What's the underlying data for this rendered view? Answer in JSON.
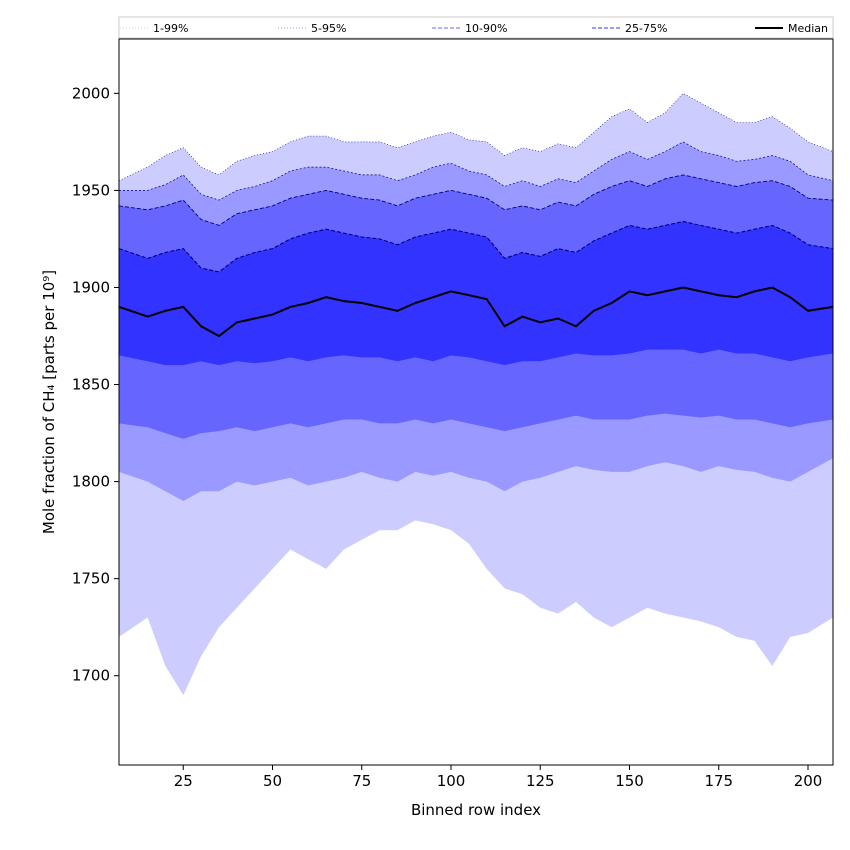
{
  "chart_data": {
    "type": "area",
    "xlabel": "Binned row index",
    "ylabel": "Mole fraction of CH₄ [parts per 10⁹]",
    "xlim": [
      7,
      207
    ],
    "ylim": [
      1654,
      2028
    ],
    "xticks": [
      25,
      50,
      75,
      100,
      125,
      150,
      175,
      200
    ],
    "yticks": [
      1700,
      1750,
      1800,
      1850,
      1900,
      1950,
      2000
    ],
    "grid": false,
    "legend_placement": "top",
    "legend": [
      {
        "label": "1-99%",
        "color": "#ccccff",
        "line": "dotted"
      },
      {
        "label": "5-95%",
        "color": "#9999ff",
        "line": "dotted"
      },
      {
        "label": "10-90%",
        "color": "#6666ff",
        "line": "dashed"
      },
      {
        "label": "25-75%",
        "color": "#3333ff",
        "line": "dashed"
      },
      {
        "label": "Median",
        "color": "#000000",
        "line": "solid"
      }
    ],
    "x": [
      7,
      15,
      20,
      25,
      30,
      35,
      40,
      45,
      50,
      55,
      60,
      65,
      70,
      75,
      80,
      85,
      90,
      95,
      100,
      105,
      110,
      115,
      120,
      125,
      130,
      135,
      140,
      145,
      150,
      155,
      160,
      165,
      170,
      175,
      180,
      185,
      190,
      195,
      200,
      207
    ],
    "series": [
      {
        "name": "1%",
        "values": [
          1720,
          1730,
          1705,
          1690,
          1710,
          1725,
          1735,
          1745,
          1755,
          1765,
          1760,
          1755,
          1765,
          1770,
          1775,
          1775,
          1780,
          1778,
          1775,
          1768,
          1755,
          1745,
          1742,
          1735,
          1732,
          1738,
          1730,
          1725,
          1730,
          1735,
          1732,
          1730,
          1728,
          1725,
          1720,
          1718,
          1705,
          1720,
          1722,
          1730
        ]
      },
      {
        "name": "5%",
        "values": [
          1805,
          1800,
          1795,
          1790,
          1795,
          1795,
          1800,
          1798,
          1800,
          1802,
          1798,
          1800,
          1802,
          1805,
          1802,
          1800,
          1805,
          1803,
          1805,
          1802,
          1800,
          1795,
          1800,
          1802,
          1805,
          1808,
          1806,
          1805,
          1805,
          1808,
          1810,
          1808,
          1805,
          1808,
          1806,
          1805,
          1802,
          1800,
          1805,
          1812
        ]
      },
      {
        "name": "10%",
        "values": [
          1830,
          1828,
          1825,
          1822,
          1825,
          1826,
          1828,
          1826,
          1828,
          1830,
          1828,
          1830,
          1832,
          1832,
          1830,
          1830,
          1832,
          1830,
          1832,
          1830,
          1828,
          1826,
          1828,
          1830,
          1832,
          1834,
          1832,
          1832,
          1832,
          1834,
          1835,
          1834,
          1833,
          1834,
          1832,
          1832,
          1830,
          1828,
          1830,
          1832
        ]
      },
      {
        "name": "25%",
        "values": [
          1865,
          1862,
          1860,
          1860,
          1862,
          1860,
          1862,
          1861,
          1862,
          1864,
          1862,
          1864,
          1865,
          1864,
          1864,
          1862,
          1864,
          1862,
          1865,
          1864,
          1862,
          1860,
          1862,
          1862,
          1864,
          1866,
          1865,
          1865,
          1866,
          1868,
          1868,
          1868,
          1866,
          1868,
          1866,
          1866,
          1864,
          1862,
          1864,
          1866
        ]
      },
      {
        "name": "Median",
        "values": [
          1890,
          1885,
          1888,
          1890,
          1880,
          1875,
          1882,
          1884,
          1886,
          1890,
          1892,
          1895,
          1893,
          1892,
          1890,
          1888,
          1892,
          1895,
          1898,
          1896,
          1894,
          1880,
          1885,
          1882,
          1884,
          1880,
          1888,
          1892,
          1898,
          1896,
          1898,
          1900,
          1898,
          1896,
          1895,
          1898,
          1900,
          1895,
          1888,
          1890
        ]
      },
      {
        "name": "75%",
        "values": [
          1920,
          1915,
          1918,
          1920,
          1910,
          1908,
          1915,
          1918,
          1920,
          1925,
          1928,
          1930,
          1928,
          1926,
          1925,
          1922,
          1926,
          1928,
          1930,
          1928,
          1926,
          1915,
          1918,
          1916,
          1920,
          1918,
          1924,
          1928,
          1932,
          1930,
          1932,
          1934,
          1932,
          1930,
          1928,
          1930,
          1932,
          1928,
          1922,
          1920
        ]
      },
      {
        "name": "90%",
        "values": [
          1942,
          1940,
          1942,
          1945,
          1935,
          1932,
          1938,
          1940,
          1942,
          1946,
          1948,
          1950,
          1948,
          1946,
          1945,
          1942,
          1946,
          1948,
          1950,
          1948,
          1946,
          1940,
          1942,
          1940,
          1944,
          1942,
          1948,
          1952,
          1955,
          1952,
          1956,
          1958,
          1956,
          1954,
          1952,
          1954,
          1955,
          1952,
          1946,
          1945
        ]
      },
      {
        "name": "95%",
        "values": [
          1950,
          1950,
          1953,
          1958,
          1948,
          1945,
          1950,
          1952,
          1955,
          1960,
          1962,
          1962,
          1960,
          1958,
          1958,
          1955,
          1958,
          1962,
          1964,
          1960,
          1958,
          1952,
          1955,
          1952,
          1956,
          1954,
          1960,
          1966,
          1970,
          1966,
          1970,
          1975,
          1970,
          1968,
          1965,
          1966,
          1968,
          1965,
          1958,
          1955
        ]
      },
      {
        "name": "99%",
        "values": [
          1955,
          1962,
          1968,
          1972,
          1962,
          1958,
          1965,
          1968,
          1970,
          1975,
          1978,
          1978,
          1975,
          1975,
          1975,
          1972,
          1975,
          1978,
          1980,
          1976,
          1975,
          1968,
          1972,
          1970,
          1974,
          1972,
          1980,
          1988,
          1992,
          1985,
          1990,
          2000,
          1995,
          1990,
          1985,
          1985,
          1988,
          1982,
          1975,
          1970
        ]
      }
    ]
  }
}
